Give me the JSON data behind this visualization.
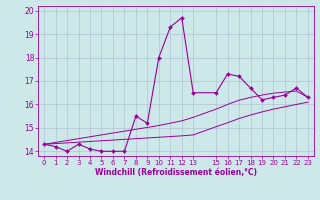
{
  "x": [
    0,
    1,
    2,
    3,
    4,
    5,
    6,
    7,
    8,
    9,
    10,
    11,
    12,
    13,
    15,
    16,
    17,
    18,
    19,
    20,
    21,
    22,
    23
  ],
  "y_main": [
    14.3,
    14.2,
    14.0,
    14.3,
    14.1,
    14.0,
    14.0,
    14.0,
    15.5,
    15.2,
    18.0,
    19.3,
    19.7,
    16.5,
    16.5,
    17.3,
    17.2,
    16.7,
    16.2,
    16.3,
    16.4,
    16.7,
    16.3
  ],
  "y_line1": [
    14.3,
    14.33,
    14.36,
    14.39,
    14.42,
    14.45,
    14.48,
    14.51,
    14.54,
    14.57,
    14.6,
    14.63,
    14.66,
    14.7,
    15.05,
    15.22,
    15.4,
    15.55,
    15.68,
    15.8,
    15.9,
    16.0,
    16.1
  ],
  "y_line2": [
    14.3,
    14.38,
    14.46,
    14.54,
    14.62,
    14.7,
    14.78,
    14.86,
    14.94,
    15.02,
    15.1,
    15.2,
    15.3,
    15.45,
    15.8,
    16.0,
    16.18,
    16.3,
    16.4,
    16.48,
    16.53,
    16.57,
    16.3
  ],
  "bg_color": "#cce8e8",
  "grid_color": "#aabbcc",
  "line_color": "#990099",
  "xlabel": "Windchill (Refroidissement éolien,°C)",
  "ylim": [
    13.8,
    20.2
  ],
  "xlim": [
    -0.5,
    23.5
  ],
  "yticks": [
    14,
    15,
    16,
    17,
    18,
    19,
    20
  ],
  "xticks": [
    0,
    1,
    2,
    3,
    4,
    5,
    6,
    7,
    8,
    9,
    10,
    11,
    12,
    13,
    15,
    16,
    17,
    18,
    19,
    20,
    21,
    22,
    23
  ],
  "tick_fontsize": 5,
  "xlabel_fontsize": 5.5
}
